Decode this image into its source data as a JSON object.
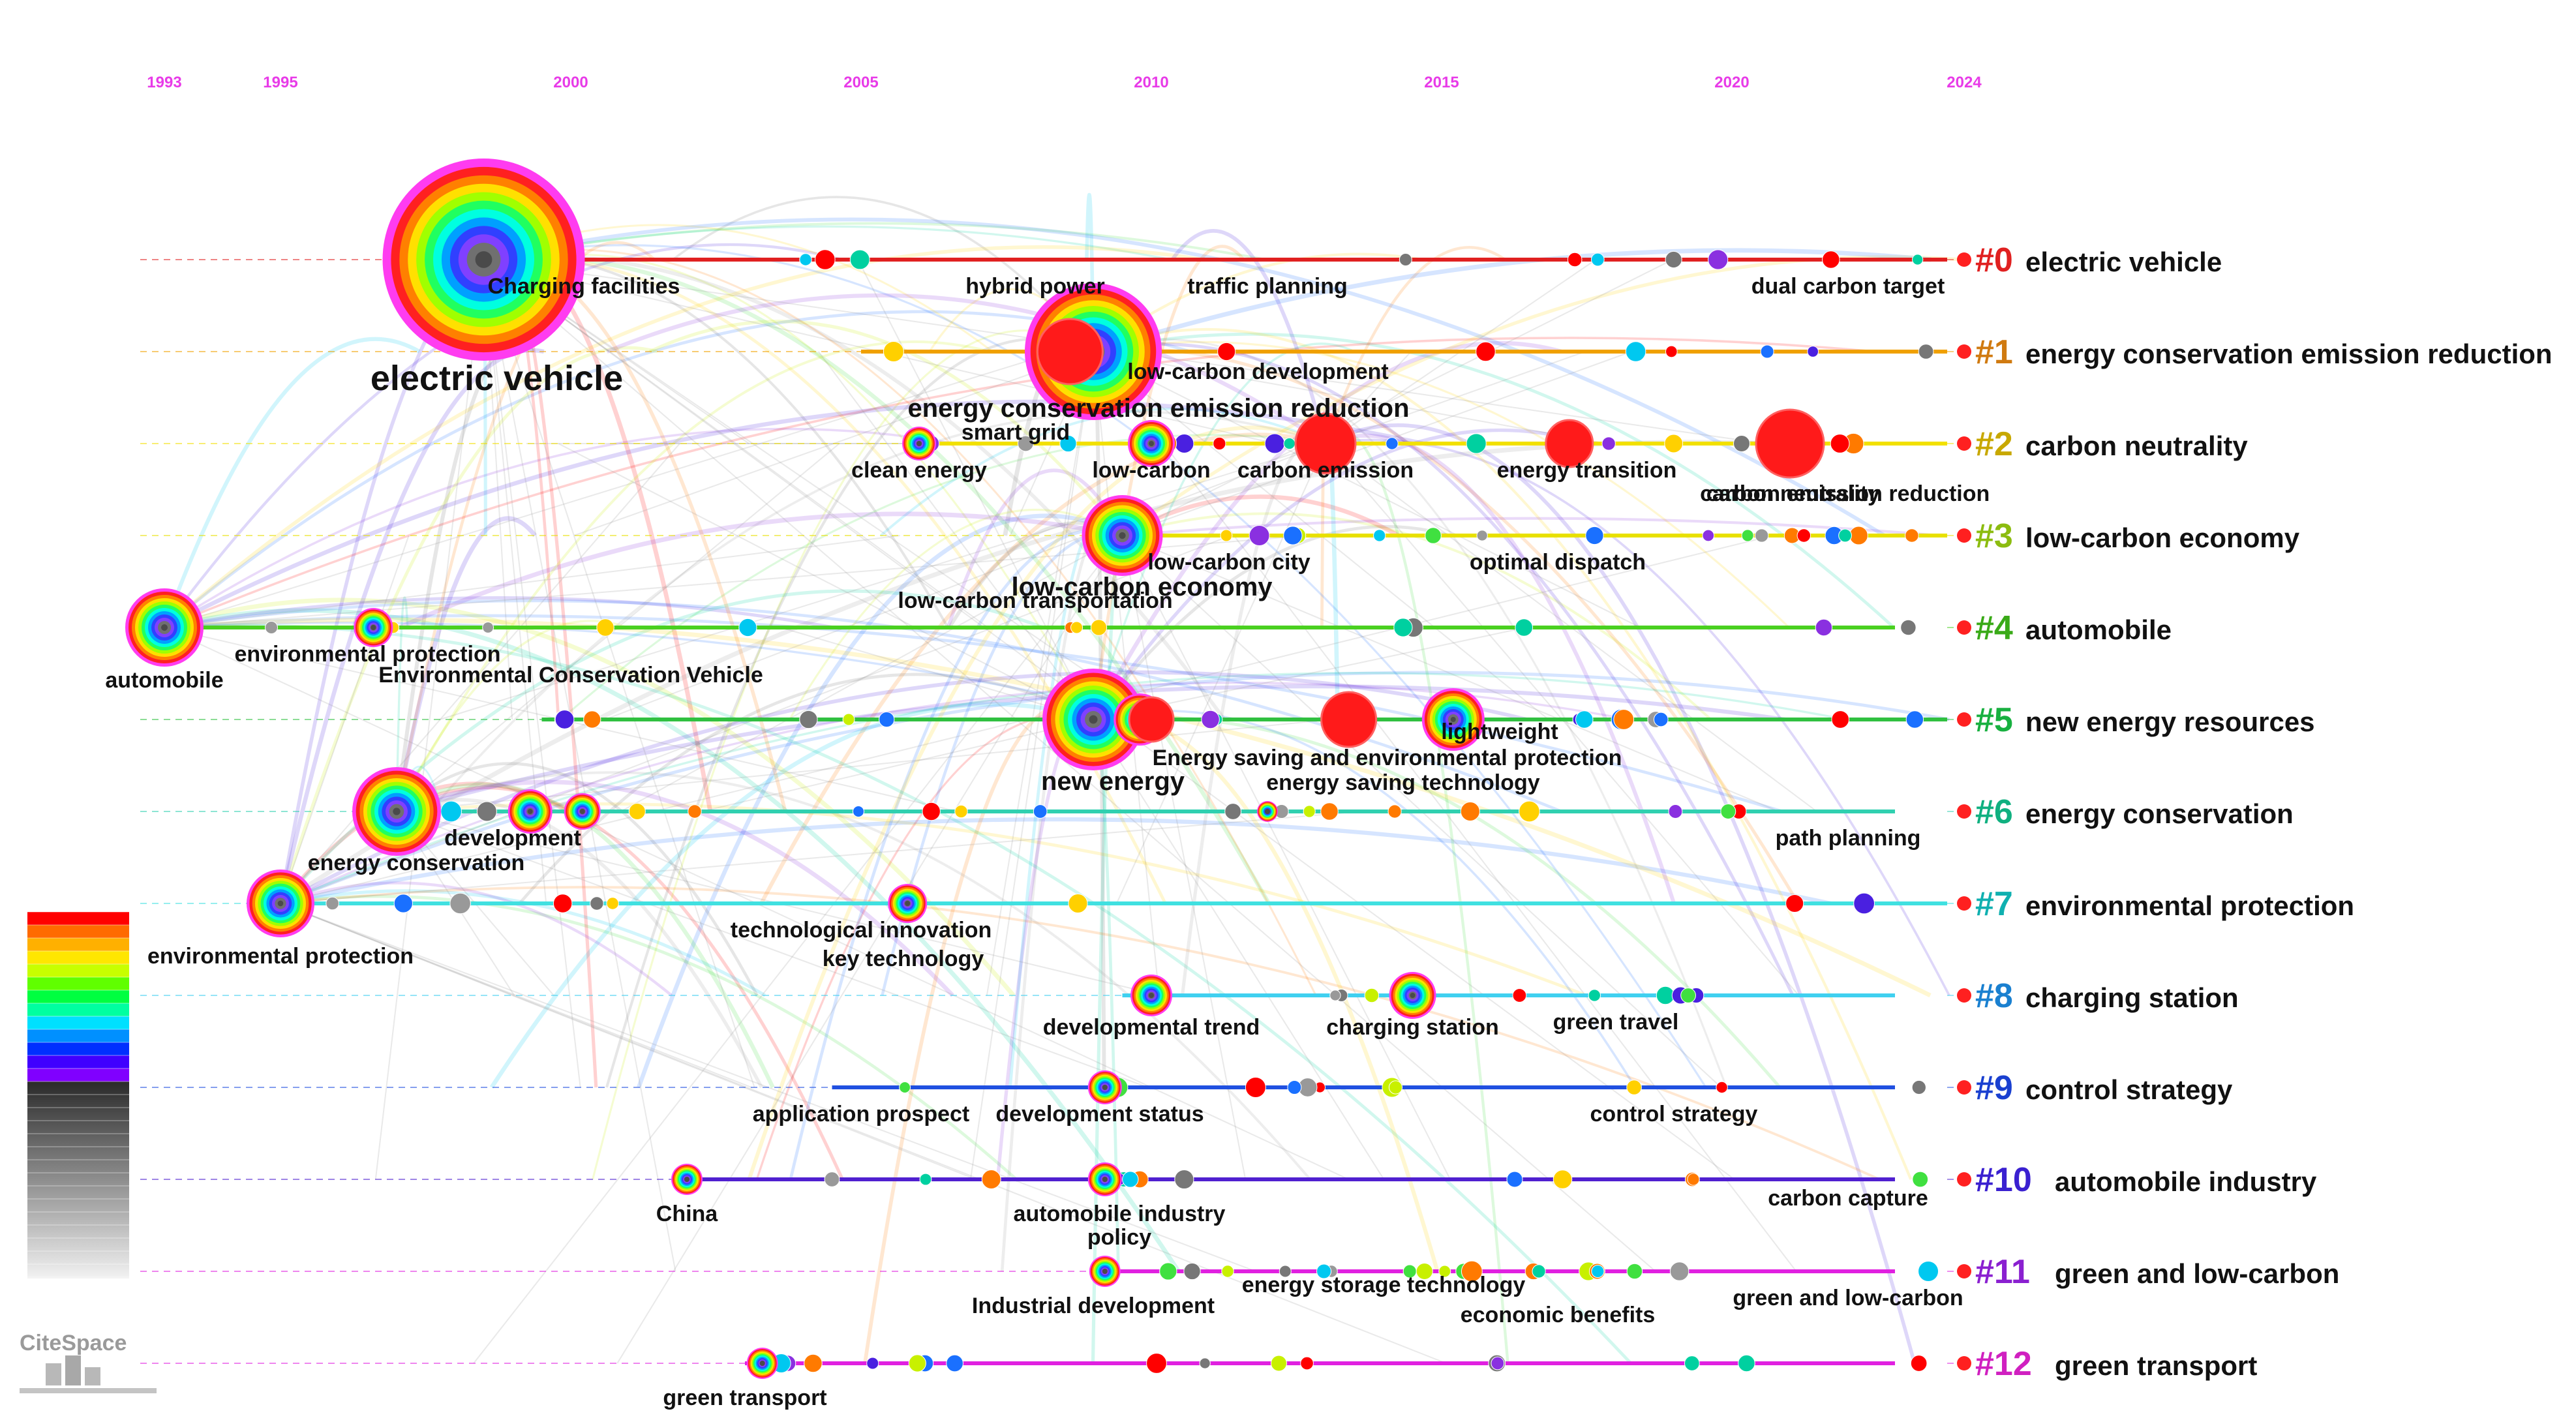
{
  "years": [
    "1993",
    "1995",
    "2000",
    "2005",
    "2010",
    "2015",
    "2020",
    "2024"
  ],
  "clusters": [
    {
      "id": "#0",
      "name": "electric vehicle",
      "color": "#e02020"
    },
    {
      "id": "#1",
      "name": "energy conservation emission reduction",
      "color": "#d07a10"
    },
    {
      "id": "#2",
      "name": "carbon neutrality",
      "color": "#c8a800"
    },
    {
      "id": "#3",
      "name": "low-carbon economy",
      "color": "#8cbc10"
    },
    {
      "id": "#4",
      "name": "automobile",
      "color": "#3aaa18"
    },
    {
      "id": "#5",
      "name": "new energy resources",
      "color": "#18b040"
    },
    {
      "id": "#6",
      "name": "energy conservation",
      "color": "#10b080"
    },
    {
      "id": "#7",
      "name": "environmental protection",
      "color": "#10b0b0"
    },
    {
      "id": "#8",
      "name": "charging station",
      "color": "#1a80d0"
    },
    {
      "id": "#9",
      "name": "control strategy",
      "color": "#1a40d0"
    },
    {
      "id": "#10",
      "name": "automobile industry",
      "color": "#3a20d0"
    },
    {
      "id": "#11",
      "name": "green and low-carbon",
      "color": "#8a20d0"
    },
    {
      "id": "#12",
      "name": "green transport",
      "color": "#d020c0"
    }
  ],
  "keywords": [
    {
      "label": "electric vehicle",
      "cluster": 0,
      "year": 1998.5,
      "size": "big"
    },
    {
      "label": "Charging facilities",
      "cluster": 0,
      "year": 2000
    },
    {
      "label": "hybrid power",
      "cluster": 0,
      "year": 2008
    },
    {
      "label": "traffic planning",
      "cluster": 0,
      "year": 2012
    },
    {
      "label": "dual carbon target",
      "cluster": 0,
      "year": 2022
    },
    {
      "label": "energy conservation emission reduction",
      "cluster": 1,
      "year": 2009,
      "size": "mid"
    },
    {
      "label": "low-carbon development",
      "cluster": 1,
      "year": 2011.5
    },
    {
      "label": "smart grid",
      "cluster": 2,
      "year": 2008
    },
    {
      "label": "clean energy",
      "cluster": 2,
      "year": 2006
    },
    {
      "label": "low-carbon",
      "cluster": 2,
      "year": 2010
    },
    {
      "label": "carbon emission",
      "cluster": 2,
      "year": 2013
    },
    {
      "label": "energy transition",
      "cluster": 2,
      "year": 2017.5
    },
    {
      "label": "carbon neutrality",
      "cluster": 2,
      "year": 2021
    },
    {
      "label": "carbon emission reduction",
      "cluster": 2,
      "year": 2022
    },
    {
      "label": "low-carbon economy",
      "cluster": 3,
      "year": 2009.5,
      "size": "mid"
    },
    {
      "label": "low-carbon city",
      "cluster": 3,
      "year": 2011
    },
    {
      "label": "optimal dispatch",
      "cluster": 3,
      "year": 2017
    },
    {
      "label": "automobile",
      "cluster": 4,
      "year": 1993
    },
    {
      "label": "environmental protection",
      "cluster": 4,
      "year": 1996.5
    },
    {
      "label": "Environmental Conservation Vehicle",
      "cluster": 4,
      "year": 2000
    },
    {
      "label": "low-carbon transportation",
      "cluster": 4,
      "year": 2008
    },
    {
      "label": "new energy",
      "cluster": 5,
      "year": 2009,
      "size": "mid"
    },
    {
      "label": "Energy saving and environmental protection",
      "cluster": 5,
      "year": 2013.5
    },
    {
      "label": "lightweight",
      "cluster": 5,
      "year": 2016
    },
    {
      "label": "energy saving technology",
      "cluster": 5,
      "year": 2014
    },
    {
      "label": "energy conservation",
      "cluster": 6,
      "year": 1997
    },
    {
      "label": "development",
      "cluster": 6,
      "year": 1999
    },
    {
      "label": "path planning",
      "cluster": 6,
      "year": 2022
    },
    {
      "label": "environmental protection",
      "cluster": 7,
      "year": 1995
    },
    {
      "label": "technological innovation",
      "cluster": 7,
      "year": 2005
    },
    {
      "label": "key technology",
      "cluster": 7,
      "year": 2005.5
    },
    {
      "label": "developmental trend",
      "cluster": 8,
      "year": 2010
    },
    {
      "label": "charging station",
      "cluster": 8,
      "year": 2014.5
    },
    {
      "label": "green travel",
      "cluster": 8,
      "year": 2018
    },
    {
      "label": "application prospect",
      "cluster": 9,
      "year": 2005
    },
    {
      "label": "development status",
      "cluster": 9,
      "year": 2009
    },
    {
      "label": "control strategy",
      "cluster": 9,
      "year": 2019
    },
    {
      "label": "China",
      "cluster": 10,
      "year": 2002
    },
    {
      "label": "automobile industry",
      "cluster": 10,
      "year": 2009
    },
    {
      "label": "policy",
      "cluster": 10,
      "year": 2009
    },
    {
      "label": "carbon capture",
      "cluster": 10,
      "year": 2022
    },
    {
      "label": "Industrial development",
      "cluster": 11,
      "year": 2009
    },
    {
      "label": "energy storage technology",
      "cluster": 11,
      "year": 2014
    },
    {
      "label": "economic benefits",
      "cluster": 11,
      "year": 2017
    },
    {
      "label": "green and low-carbon",
      "cluster": 11,
      "year": 2022
    },
    {
      "label": "green transport",
      "cluster": 12,
      "year": 2003
    }
  ],
  "legend_colors": [
    "#ff0000",
    "#ff6a00",
    "#ffb000",
    "#ffe600",
    "#c8ff00",
    "#60ff00",
    "#00ff40",
    "#00ffa0",
    "#00e0ff",
    "#0090ff",
    "#0030ff",
    "#4000ff",
    "#8000ff"
  ],
  "brand": "CiteSpace"
}
